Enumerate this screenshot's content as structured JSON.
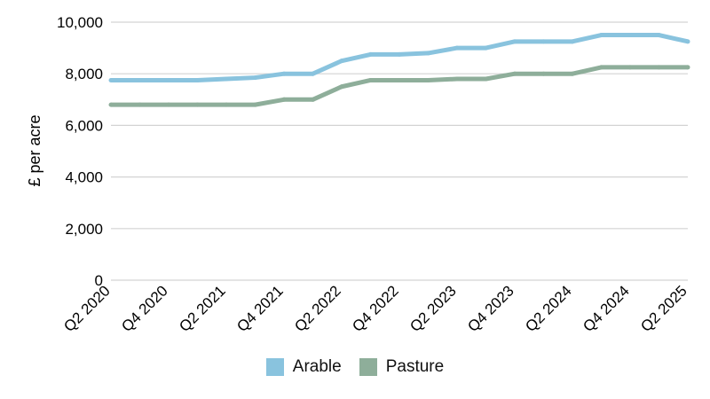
{
  "chart_data": {
    "type": "line",
    "title": "",
    "xlabel": "",
    "ylabel": "£ per acre",
    "ylim": [
      0,
      10000
    ],
    "yticks": [
      0,
      2000,
      4000,
      6000,
      8000,
      10000
    ],
    "ytick_labels": [
      "0",
      "2,000",
      "4,000",
      "6,000",
      "8,000",
      "10,000"
    ],
    "categories": [
      "Q2 2020",
      "Q3 2020",
      "Q4 2020",
      "Q1 2021",
      "Q2 2021",
      "Q3 2021",
      "Q4 2021",
      "Q1 2022",
      "Q2 2022",
      "Q3 2022",
      "Q4 2022",
      "Q1 2023",
      "Q2 2023",
      "Q3 2023",
      "Q4 2023",
      "Q1 2024",
      "Q2 2024",
      "Q3 2024",
      "Q4 2024",
      "Q1 2025",
      "Q2 2025"
    ],
    "xtick_labels": [
      "Q2 2020",
      "Q4 2020",
      "Q2 2021",
      "Q4 2021",
      "Q2 2022",
      "Q4 2022",
      "Q2 2023",
      "Q4 2023",
      "Q2 2024",
      "Q4 2024",
      "Q2 2025"
    ],
    "series": [
      {
        "name": "Arable",
        "color": "#89c3de",
        "values": [
          7750,
          7750,
          7750,
          7750,
          7800,
          7850,
          8000,
          8000,
          8500,
          8750,
          8750,
          8800,
          9000,
          9000,
          9250,
          9250,
          9250,
          9500,
          9500,
          9500,
          9250
        ]
      },
      {
        "name": "Pasture",
        "color": "#8eae9a",
        "values": [
          6800,
          6800,
          6800,
          6800,
          6800,
          6800,
          7000,
          7000,
          7500,
          7750,
          7750,
          7750,
          7800,
          7800,
          8000,
          8000,
          8000,
          8250,
          8250,
          8250,
          8250
        ]
      }
    ],
    "grid": true,
    "legend_position": "bottom"
  }
}
